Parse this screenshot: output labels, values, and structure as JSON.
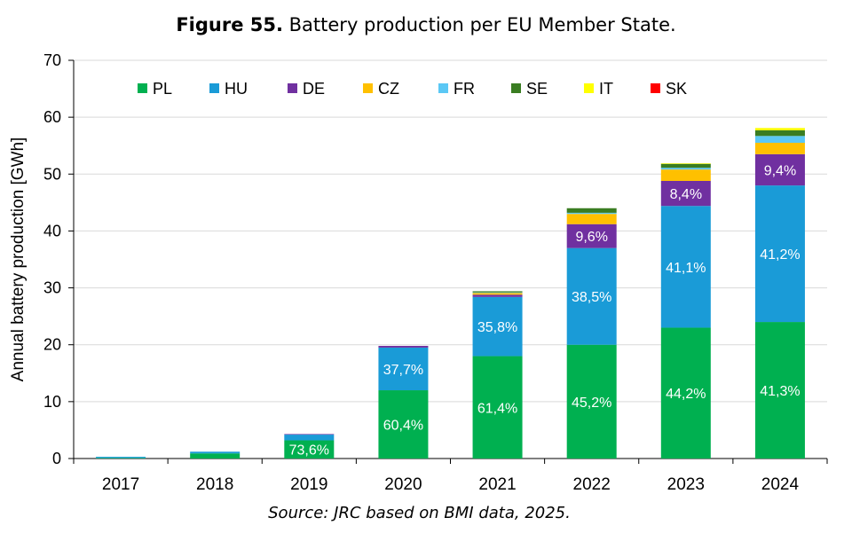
{
  "figure": {
    "number": "Figure 55.",
    "caption": " Battery production per EU Member State."
  },
  "source": "Source: JRC based on BMI data, 2025.",
  "chart_data": {
    "type": "bar",
    "stacked": true,
    "title": "Figure 55. Battery production per EU Member State.",
    "xlabel": "",
    "ylabel": "Annual battery production  [GWh]",
    "ylim": [
      0,
      70
    ],
    "yticks": [
      0,
      10,
      20,
      30,
      40,
      50,
      60,
      70
    ],
    "grid": true,
    "legend_position": "top",
    "categories": [
      "2017",
      "2018",
      "2019",
      "2020",
      "2021",
      "2022",
      "2023",
      "2024"
    ],
    "series": [
      {
        "name": "PL",
        "color": "#00b050",
        "values": [
          0.1,
          0.9,
          3.2,
          12.0,
          18.0,
          20.0,
          23.0,
          24.0
        ]
      },
      {
        "name": "HU",
        "color": "#1a9bd7",
        "values": [
          0.2,
          0.3,
          1.0,
          7.5,
          10.4,
          17.0,
          21.4,
          24.0
        ]
      },
      {
        "name": "DE",
        "color": "#7030a0",
        "values": [
          0.0,
          0.0,
          0.1,
          0.3,
          0.4,
          4.2,
          4.4,
          5.5
        ]
      },
      {
        "name": "CZ",
        "color": "#ffc000",
        "values": [
          0.0,
          0.0,
          0.0,
          0.0,
          0.3,
          1.8,
          2.0,
          2.0
        ]
      },
      {
        "name": "FR",
        "color": "#5bc8f5",
        "values": [
          0.0,
          0.0,
          0.0,
          0.0,
          0.1,
          0.2,
          0.3,
          1.2
        ]
      },
      {
        "name": "SE",
        "color": "#3a7d22",
        "values": [
          0.0,
          0.0,
          0.0,
          0.0,
          0.2,
          0.8,
          0.7,
          1.0
        ]
      },
      {
        "name": "IT",
        "color": "#ffff00",
        "values": [
          0.0,
          0.0,
          0.0,
          0.0,
          0.0,
          0.0,
          0.1,
          0.4
        ]
      },
      {
        "name": "SK",
        "color": "#ff0000",
        "values": [
          0.0,
          0.0,
          0.0,
          0.0,
          0.0,
          0.0,
          0.0,
          0.0
        ]
      }
    ],
    "data_labels": [
      {
        "category": "2019",
        "series": "PL",
        "text": "73,6%"
      },
      {
        "category": "2020",
        "series": "PL",
        "text": "60,4%"
      },
      {
        "category": "2020",
        "series": "HU",
        "text": "37,7%"
      },
      {
        "category": "2021",
        "series": "PL",
        "text": "61,4%"
      },
      {
        "category": "2021",
        "series": "HU",
        "text": "35,8%"
      },
      {
        "category": "2022",
        "series": "PL",
        "text": "45,2%"
      },
      {
        "category": "2022",
        "series": "HU",
        "text": "38,5%"
      },
      {
        "category": "2022",
        "series": "DE",
        "text": "9,6%"
      },
      {
        "category": "2023",
        "series": "PL",
        "text": "44,2%"
      },
      {
        "category": "2023",
        "series": "HU",
        "text": "41,1%"
      },
      {
        "category": "2023",
        "series": "DE",
        "text": "8,4%"
      },
      {
        "category": "2024",
        "series": "PL",
        "text": "41,3%"
      },
      {
        "category": "2024",
        "series": "HU",
        "text": "41,2%"
      },
      {
        "category": "2024",
        "series": "DE",
        "text": "9,4%"
      }
    ]
  }
}
